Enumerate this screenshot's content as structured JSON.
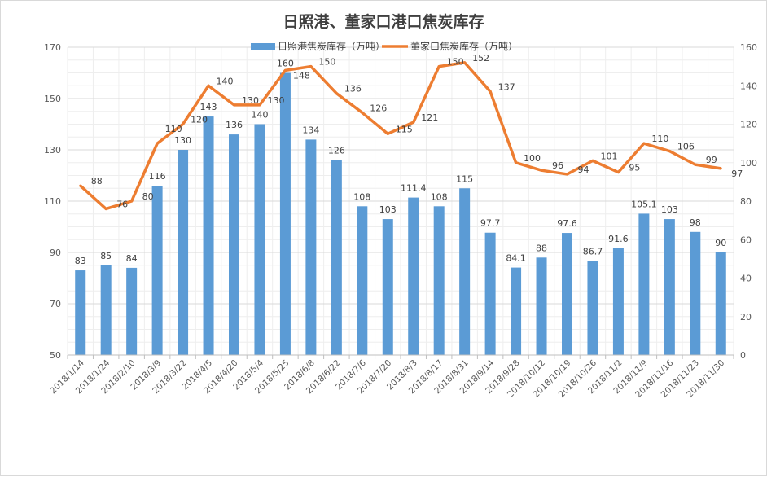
{
  "chart_data": {
    "type": "bar+line",
    "title": "日照港、董家口港口焦炭库存",
    "categories": [
      "2018/1/14",
      "2018/1/24",
      "2018/2/10",
      "2018/3/9",
      "2018/3/22",
      "2018/4/5",
      "2018/4/20",
      "2018/5/4",
      "2018/5/25",
      "2018/6/8",
      "2018/6/22",
      "2018/7/6",
      "2018/7/20",
      "2018/8/3",
      "2018/8/17",
      "2018/8/31",
      "2018/9/14",
      "2018/9/28",
      "2018/10/12",
      "2018/10/19",
      "2018/10/26",
      "2018/11/2",
      "2018/11/9",
      "2018/11/16",
      "2018/11/23",
      "2018/11/30"
    ],
    "series": [
      {
        "name": "日照港焦炭库存（万吨）",
        "type": "bar",
        "axis": "left",
        "color": "#5b9bd5",
        "values": [
          83,
          85,
          84,
          116,
          130,
          143,
          136,
          140,
          160,
          134,
          126,
          108,
          103,
          111.4,
          108,
          115,
          97.7,
          84.1,
          88,
          97.6,
          86.7,
          91.6,
          105.1,
          103,
          98,
          90
        ]
      },
      {
        "name": "董家口焦炭库存（万吨）",
        "type": "line",
        "axis": "right",
        "color": "#ed7d31",
        "values": [
          88,
          76,
          80,
          110,
          120,
          140,
          130,
          130,
          148,
          150,
          136,
          126,
          115,
          121,
          150,
          152,
          137,
          100,
          96,
          94,
          101,
          95,
          110,
          106,
          99,
          97
        ]
      }
    ],
    "left_axis": {
      "min": 50,
      "max": 170,
      "ticks": [
        50,
        70,
        90,
        110,
        130,
        150,
        170
      ]
    },
    "right_axis": {
      "min": 0,
      "max": 160,
      "ticks": [
        0,
        20,
        40,
        60,
        80,
        100,
        120,
        140,
        160
      ]
    },
    "grid": true,
    "legend": "top-center"
  }
}
